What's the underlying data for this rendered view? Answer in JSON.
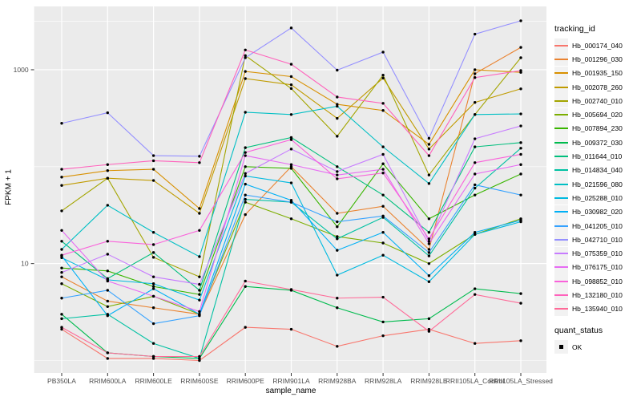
{
  "chart_data": {
    "type": "line",
    "title": "",
    "xlabel": "sample_name",
    "ylabel": "FPKM + 1",
    "y_scale": "log10",
    "y_tick_labels": [
      "10",
      "1000"
    ],
    "y_tick_values": [
      10,
      1000
    ],
    "y_minor_values": [
      1,
      100,
      3162
    ],
    "ylim": [
      0.85,
      3800
    ],
    "grid": true,
    "legend_position": "right",
    "panel_bg": "#EBEBEB",
    "grid_color": "#FFFFFF",
    "tick_label_color": "#4D4D4D",
    "tick_mark_color": "#333333",
    "point_color": "#000000",
    "legend_key_bg": "#F2F2F2",
    "tracking_legend_title": "tracking_id",
    "quant_legend_title": "quant_status",
    "quant_items": [
      "OK"
    ],
    "categories": [
      "PB350LA",
      "RRIM600LA",
      "RRIM600LE",
      "RRIM600SE",
      "RRIM600PE",
      "RRIM901LA",
      "RRIM928BA",
      "RRIM928LA",
      "RRIM928LE",
      "RRII105LA_Control",
      "RRII105LA_Stressed"
    ],
    "series": [
      {
        "name": "Hb_000174_040",
        "color": "#F8766D",
        "values": [
          2.1,
          1.05,
          1.05,
          1.0,
          2.2,
          2.1,
          1.4,
          1.8,
          2.1,
          1.5,
          1.6
        ]
      },
      {
        "name": "Hb_001296_030",
        "color": "#EA8331",
        "values": [
          7.3,
          4.1,
          3.5,
          3.0,
          32,
          100,
          33,
          39,
          14,
          910,
          1700
        ]
      },
      {
        "name": "Hb_001935_150",
        "color": "#D89000",
        "values": [
          78,
          91,
          94,
          37,
          960,
          850,
          440,
          380,
          170,
          1000,
          940
        ]
      },
      {
        "name": "Hb_002078_260",
        "color": "#C09B00",
        "values": [
          64,
          76,
          72,
          33,
          810,
          700,
          315,
          820,
          152,
          460,
          635
        ]
      },
      {
        "name": "Hb_002740_010",
        "color": "#A3A500",
        "values": [
          35,
          76,
          11.6,
          7.3,
          1400,
          640,
          206,
          880,
          82,
          345,
          1330
        ]
      },
      {
        "name": "Hb_005694_020",
        "color": "#7CAE00",
        "values": [
          6.2,
          3.6,
          4.6,
          3.0,
          43,
          29,
          19,
          16.3,
          10,
          20,
          29
        ]
      },
      {
        "name": "Hb_007894_230",
        "color": "#39B600",
        "values": [
          9.0,
          8.4,
          5.8,
          4.8,
          100,
          96,
          24,
          107,
          29,
          51,
          84
        ]
      },
      {
        "name": "Hb_009372_030",
        "color": "#00BB4E",
        "values": [
          3.0,
          1.2,
          1.1,
          1.05,
          5.8,
          5.3,
          3.5,
          2.5,
          2.7,
          5.5,
          4.9
        ]
      },
      {
        "name": "Hb_011644_010",
        "color": "#00BF7D",
        "values": [
          17,
          7.0,
          13,
          5.3,
          157,
          200,
          100,
          51,
          21,
          160,
          177
        ]
      },
      {
        "name": "Hb_014834_040",
        "color": "#00C1A3",
        "values": [
          2.7,
          3.0,
          1.5,
          1.05,
          46,
          43,
          18,
          30,
          12,
          60,
          155
        ]
      },
      {
        "name": "Hb_021596_080",
        "color": "#00BFC4",
        "values": [
          14,
          40,
          21,
          11.8,
          364,
          345,
          420,
          160,
          67,
          345,
          350
        ]
      },
      {
        "name": "Hb_025288_010",
        "color": "#00BAE0",
        "values": [
          11.5,
          6.8,
          6.2,
          4.2,
          80,
          68,
          7.6,
          12.2,
          6.5,
          20,
          27
        ]
      },
      {
        "name": "Hb_030982_020",
        "color": "#00B0F6",
        "values": [
          12,
          2.9,
          5.5,
          3.0,
          66,
          45,
          13.7,
          21,
          7.5,
          21,
          28
        ]
      },
      {
        "name": "Hb_041205_010",
        "color": "#35A2FF",
        "values": [
          4.4,
          5.3,
          2.4,
          2.9,
          51,
          43,
          27,
          31,
          13,
          65,
          51
        ]
      },
      {
        "name": "Hb_042710_010",
        "color": "#9590FF",
        "values": [
          280,
          360,
          130,
          128,
          1330,
          2700,
          990,
          1520,
          196,
          2330,
          3200
        ]
      },
      {
        "name": "Hb_075359_010",
        "color": "#C77CFF",
        "values": [
          8.1,
          12.5,
          7.3,
          6.1,
          85,
          152,
          89,
          134,
          17,
          194,
          263
        ]
      },
      {
        "name": "Hb_076175_010",
        "color": "#E76BF3",
        "values": [
          22,
          6.6,
          4.6,
          3.2,
          130,
          105,
          82,
          94,
          16,
          84,
          105
        ]
      },
      {
        "name": "Hb_098852_010",
        "color": "#FA62DB",
        "values": [
          12.2,
          17,
          15.7,
          22,
          140,
          190,
          75,
          86,
          18,
          110,
          134
        ]
      },
      {
        "name": "Hb_132180_010",
        "color": "#FF62BC",
        "values": [
          94,
          105,
          115,
          110,
          1600,
          1140,
          523,
          450,
          130,
          830,
          980
        ]
      },
      {
        "name": "Hb_135940_010",
        "color": "#FF6A98",
        "values": [
          2.2,
          1.2,
          1.1,
          1.1,
          6.6,
          5.4,
          4.4,
          4.5,
          2.0,
          4.8,
          3.9
        ]
      }
    ]
  }
}
